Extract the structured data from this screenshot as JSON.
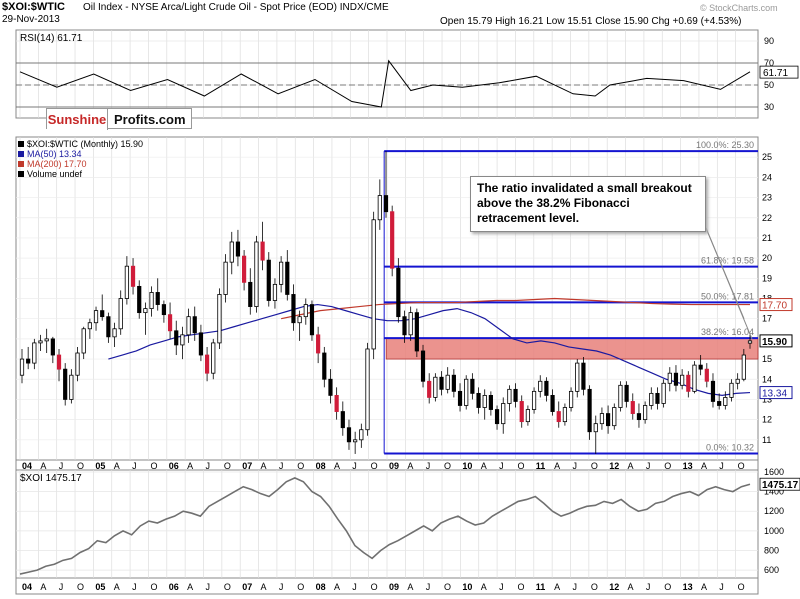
{
  "header": {
    "symbol": "$XOI:$WTIC",
    "description": "Oil Index - NYSE Arca/Light Crude Oil - Spot Price (EOD)  INDX/CME",
    "date": "29-Nov-2013",
    "open_label": "Open",
    "open": "15.79",
    "high_label": "High",
    "high": "16.21",
    "low_label": "Low",
    "low": "15.51",
    "close_label": "Close",
    "close": "15.90",
    "chg_label": "Chg",
    "chg": "+0.69 (+4.53%)",
    "watermark": "© StockCharts.com"
  },
  "logo": {
    "part1": "Sunshine",
    "part2": "Profits.com"
  },
  "annotation": "The ratio invalidated a small breakout above the 38.2% Fibonacci retracement level.",
  "chart_data": [
    {
      "type": "line",
      "panel": "rsi",
      "legend": "RSI(14) 61.71",
      "last_value": "61.71",
      "ylim": [
        20,
        100
      ],
      "y_ticks": [
        90,
        70,
        50,
        30
      ],
      "reference_lines": [
        70,
        50,
        30
      ],
      "x": [
        2004.0,
        2004.5,
        2005.0,
        2005.5,
        2006.0,
        2006.5,
        2007.0,
        2007.5,
        2008.0,
        2008.5,
        2008.9,
        2009.0,
        2009.3,
        2009.6,
        2010.0,
        2010.5,
        2011.0,
        2011.5,
        2011.8,
        2012.0,
        2012.5,
        2013.0,
        2013.5,
        2013.9
      ],
      "values": [
        62,
        48,
        60,
        45,
        55,
        40,
        60,
        42,
        55,
        35,
        30,
        72,
        45,
        50,
        48,
        52,
        58,
        42,
        40,
        50,
        56,
        54,
        46,
        62
      ],
      "color": "#000000"
    },
    {
      "type": "candlestick",
      "panel": "price",
      "legend": [
        {
          "text": "$XOI:$WTIC (Monthly) 15.90",
          "color": "#000000"
        },
        {
          "text": "MA(50) 13.34",
          "color": "#1a1aa0"
        },
        {
          "text": "MA(200) 17.70",
          "color": "#c0392b"
        },
        {
          "text": "Volume undef",
          "color": "#000000"
        }
      ],
      "ylim": [
        10,
        26
      ],
      "y_ticks": [
        11,
        12,
        13,
        14,
        15,
        16,
        17,
        18,
        19,
        20,
        21,
        22,
        23,
        24,
        25
      ],
      "x_ticks": [
        "04",
        "A",
        "J",
        "O",
        "05",
        "A",
        "J",
        "O",
        "06",
        "A",
        "J",
        "O",
        "07",
        "A",
        "J",
        "O",
        "08",
        "A",
        "J",
        "O",
        "09",
        "A",
        "J",
        "O",
        "10",
        "A",
        "J",
        "O",
        "11",
        "A",
        "J",
        "O",
        "12",
        "A",
        "J",
        "O",
        "13",
        "A",
        "J",
        "O"
      ],
      "candles": [
        {
          "o": 14.2,
          "h": 15.5,
          "l": 13.8,
          "c": 15.0
        },
        {
          "o": 15.0,
          "h": 15.6,
          "l": 14.5,
          "c": 14.8
        },
        {
          "o": 14.8,
          "h": 16.0,
          "l": 14.5,
          "c": 15.8
        },
        {
          "o": 15.8,
          "h": 16.2,
          "l": 15.4,
          "c": 15.9
        },
        {
          "o": 15.9,
          "h": 16.5,
          "l": 15.3,
          "c": 16.0
        },
        {
          "o": 16.0,
          "h": 16.1,
          "l": 14.8,
          "c": 15.2
        },
        {
          "o": 15.2,
          "h": 15.5,
          "l": 13.9,
          "c": 14.5
        },
        {
          "o": 14.5,
          "h": 14.8,
          "l": 12.7,
          "c": 13.0
        },
        {
          "o": 13.0,
          "h": 14.5,
          "l": 12.8,
          "c": 14.2
        },
        {
          "o": 14.2,
          "h": 15.6,
          "l": 13.9,
          "c": 15.3
        },
        {
          "o": 15.3,
          "h": 16.6,
          "l": 15.0,
          "c": 16.5
        },
        {
          "o": 16.5,
          "h": 17.0,
          "l": 16.0,
          "c": 16.8
        },
        {
          "o": 16.8,
          "h": 17.6,
          "l": 16.4,
          "c": 17.4
        },
        {
          "o": 17.4,
          "h": 18.2,
          "l": 16.9,
          "c": 17.1
        },
        {
          "o": 17.1,
          "h": 17.3,
          "l": 15.8,
          "c": 16.1
        },
        {
          "o": 16.1,
          "h": 16.8,
          "l": 15.6,
          "c": 16.5
        },
        {
          "o": 16.5,
          "h": 18.4,
          "l": 16.2,
          "c": 18.0
        },
        {
          "o": 18.0,
          "h": 20.1,
          "l": 17.7,
          "c": 19.6
        },
        {
          "o": 19.6,
          "h": 20.0,
          "l": 18.2,
          "c": 18.6
        },
        {
          "o": 18.6,
          "h": 18.9,
          "l": 17.0,
          "c": 17.3
        },
        {
          "o": 17.3,
          "h": 17.8,
          "l": 16.2,
          "c": 17.5
        },
        {
          "o": 17.5,
          "h": 18.6,
          "l": 17.1,
          "c": 18.3
        },
        {
          "o": 18.3,
          "h": 19.0,
          "l": 17.4,
          "c": 17.7
        },
        {
          "o": 17.7,
          "h": 17.9,
          "l": 16.8,
          "c": 17.2
        },
        {
          "o": 17.2,
          "h": 17.8,
          "l": 16.0,
          "c": 16.4
        },
        {
          "o": 16.4,
          "h": 16.9,
          "l": 15.2,
          "c": 15.7
        },
        {
          "o": 15.7,
          "h": 16.6,
          "l": 15.0,
          "c": 16.2
        },
        {
          "o": 16.2,
          "h": 17.5,
          "l": 15.8,
          "c": 17.1
        },
        {
          "o": 17.1,
          "h": 17.6,
          "l": 15.9,
          "c": 16.3
        },
        {
          "o": 16.3,
          "h": 16.7,
          "l": 14.9,
          "c": 15.2
        },
        {
          "o": 15.2,
          "h": 15.6,
          "l": 13.9,
          "c": 14.3
        },
        {
          "o": 14.3,
          "h": 16.0,
          "l": 14.0,
          "c": 15.8
        },
        {
          "o": 15.8,
          "h": 18.5,
          "l": 15.5,
          "c": 18.2
        },
        {
          "o": 18.2,
          "h": 20.2,
          "l": 17.8,
          "c": 19.8
        },
        {
          "o": 19.8,
          "h": 21.3,
          "l": 19.2,
          "c": 20.8
        },
        {
          "o": 20.8,
          "h": 21.4,
          "l": 19.6,
          "c": 20.1
        },
        {
          "o": 20.1,
          "h": 20.4,
          "l": 18.4,
          "c": 18.8
        },
        {
          "o": 18.8,
          "h": 19.5,
          "l": 17.2,
          "c": 17.6
        },
        {
          "o": 17.6,
          "h": 21.1,
          "l": 17.3,
          "c": 20.8
        },
        {
          "o": 20.8,
          "h": 21.8,
          "l": 19.4,
          "c": 19.9
        },
        {
          "o": 19.9,
          "h": 20.3,
          "l": 17.6,
          "c": 17.9
        },
        {
          "o": 17.9,
          "h": 19.0,
          "l": 17.5,
          "c": 18.7
        },
        {
          "o": 18.7,
          "h": 20.1,
          "l": 18.3,
          "c": 19.8
        },
        {
          "o": 19.8,
          "h": 20.4,
          "l": 17.9,
          "c": 18.2
        },
        {
          "o": 18.2,
          "h": 18.7,
          "l": 16.4,
          "c": 16.8
        },
        {
          "o": 16.8,
          "h": 17.4,
          "l": 15.9,
          "c": 17.1
        },
        {
          "o": 17.1,
          "h": 18.0,
          "l": 16.7,
          "c": 17.7
        },
        {
          "o": 17.7,
          "h": 17.9,
          "l": 15.9,
          "c": 16.2
        },
        {
          "o": 16.2,
          "h": 16.6,
          "l": 14.8,
          "c": 15.3
        },
        {
          "o": 15.3,
          "h": 15.6,
          "l": 13.6,
          "c": 14.0
        },
        {
          "o": 14.0,
          "h": 14.5,
          "l": 12.8,
          "c": 13.2
        },
        {
          "o": 13.2,
          "h": 13.6,
          "l": 12.0,
          "c": 12.4
        },
        {
          "o": 12.4,
          "h": 12.9,
          "l": 11.2,
          "c": 11.6
        },
        {
          "o": 11.6,
          "h": 12.0,
          "l": 10.5,
          "c": 10.9
        },
        {
          "o": 10.9,
          "h": 11.4,
          "l": 10.3,
          "c": 11.0
        },
        {
          "o": 11.0,
          "h": 11.8,
          "l": 10.6,
          "c": 11.5
        },
        {
          "o": 11.5,
          "h": 15.8,
          "l": 11.2,
          "c": 15.5
        },
        {
          "o": 15.5,
          "h": 22.3,
          "l": 15.0,
          "c": 21.9
        },
        {
          "o": 21.9,
          "h": 23.9,
          "l": 21.4,
          "c": 23.1
        },
        {
          "o": 23.1,
          "h": 25.3,
          "l": 22.0,
          "c": 22.3
        },
        {
          "o": 22.3,
          "h": 22.6,
          "l": 19.1,
          "c": 19.5
        },
        {
          "o": 19.5,
          "h": 20.0,
          "l": 16.8,
          "c": 17.1
        },
        {
          "o": 17.1,
          "h": 17.4,
          "l": 15.8,
          "c": 16.2
        },
        {
          "o": 16.2,
          "h": 17.6,
          "l": 15.9,
          "c": 17.3
        },
        {
          "o": 17.3,
          "h": 17.5,
          "l": 15.1,
          "c": 15.4
        },
        {
          "o": 15.4,
          "h": 15.7,
          "l": 13.6,
          "c": 13.9
        },
        {
          "o": 13.9,
          "h": 14.3,
          "l": 12.8,
          "c": 13.1
        },
        {
          "o": 13.1,
          "h": 14.3,
          "l": 12.9,
          "c": 14.1
        },
        {
          "o": 14.1,
          "h": 14.4,
          "l": 13.2,
          "c": 13.5
        },
        {
          "o": 13.5,
          "h": 14.6,
          "l": 13.3,
          "c": 14.2
        },
        {
          "o": 14.2,
          "h": 14.5,
          "l": 13.1,
          "c": 13.4
        },
        {
          "o": 13.4,
          "h": 13.8,
          "l": 12.4,
          "c": 12.7
        },
        {
          "o": 12.7,
          "h": 14.2,
          "l": 12.5,
          "c": 14.0
        },
        {
          "o": 14.0,
          "h": 14.3,
          "l": 13.0,
          "c": 13.3
        },
        {
          "o": 13.3,
          "h": 13.6,
          "l": 12.3,
          "c": 12.6
        },
        {
          "o": 12.6,
          "h": 13.5,
          "l": 12.0,
          "c": 13.2
        },
        {
          "o": 13.2,
          "h": 13.4,
          "l": 12.2,
          "c": 12.5
        },
        {
          "o": 12.5,
          "h": 12.7,
          "l": 11.5,
          "c": 11.8
        },
        {
          "o": 11.8,
          "h": 13.1,
          "l": 11.3,
          "c": 12.8
        },
        {
          "o": 12.8,
          "h": 13.7,
          "l": 12.4,
          "c": 13.5
        },
        {
          "o": 13.5,
          "h": 13.8,
          "l": 12.6,
          "c": 12.9
        },
        {
          "o": 12.9,
          "h": 13.2,
          "l": 11.6,
          "c": 11.9
        },
        {
          "o": 11.9,
          "h": 12.7,
          "l": 11.7,
          "c": 12.5
        },
        {
          "o": 12.5,
          "h": 13.6,
          "l": 12.3,
          "c": 13.4
        },
        {
          "o": 13.4,
          "h": 14.2,
          "l": 13.1,
          "c": 13.9
        },
        {
          "o": 13.9,
          "h": 14.1,
          "l": 12.9,
          "c": 13.2
        },
        {
          "o": 13.2,
          "h": 13.5,
          "l": 12.2,
          "c": 12.4
        },
        {
          "o": 12.4,
          "h": 12.9,
          "l": 11.6,
          "c": 11.9
        },
        {
          "o": 11.9,
          "h": 12.8,
          "l": 11.7,
          "c": 12.6
        },
        {
          "o": 12.6,
          "h": 13.6,
          "l": 12.4,
          "c": 13.4
        },
        {
          "o": 13.4,
          "h": 15.0,
          "l": 13.1,
          "c": 14.8
        },
        {
          "o": 14.8,
          "h": 15.1,
          "l": 13.2,
          "c": 13.5
        },
        {
          "o": 13.5,
          "h": 13.7,
          "l": 11.0,
          "c": 11.4
        },
        {
          "o": 11.4,
          "h": 12.2,
          "l": 10.3,
          "c": 11.8
        },
        {
          "o": 11.8,
          "h": 12.6,
          "l": 11.5,
          "c": 12.3
        },
        {
          "o": 12.3,
          "h": 12.7,
          "l": 11.3,
          "c": 11.7
        },
        {
          "o": 11.7,
          "h": 12.8,
          "l": 11.5,
          "c": 12.6
        },
        {
          "o": 12.6,
          "h": 13.9,
          "l": 12.4,
          "c": 13.7
        },
        {
          "o": 13.7,
          "h": 13.9,
          "l": 12.6,
          "c": 12.9
        },
        {
          "o": 12.9,
          "h": 13.3,
          "l": 12.0,
          "c": 12.3
        },
        {
          "o": 12.3,
          "h": 12.8,
          "l": 11.6,
          "c": 12.0
        },
        {
          "o": 12.0,
          "h": 12.9,
          "l": 11.8,
          "c": 12.7
        },
        {
          "o": 12.7,
          "h": 13.6,
          "l": 12.5,
          "c": 13.3
        },
        {
          "o": 13.3,
          "h": 13.6,
          "l": 12.5,
          "c": 12.8
        },
        {
          "o": 12.8,
          "h": 14.0,
          "l": 12.6,
          "c": 13.8
        },
        {
          "o": 13.8,
          "h": 14.6,
          "l": 13.4,
          "c": 14.3
        },
        {
          "o": 14.3,
          "h": 14.7,
          "l": 13.4,
          "c": 13.7
        },
        {
          "o": 13.7,
          "h": 14.5,
          "l": 13.5,
          "c": 14.2
        },
        {
          "o": 14.2,
          "h": 14.4,
          "l": 13.1,
          "c": 13.4
        },
        {
          "o": 13.4,
          "h": 14.9,
          "l": 13.3,
          "c": 14.7
        },
        {
          "o": 14.7,
          "h": 15.2,
          "l": 14.2,
          "c": 14.5
        },
        {
          "o": 14.5,
          "h": 14.8,
          "l": 13.6,
          "c": 13.9
        },
        {
          "o": 13.9,
          "h": 14.3,
          "l": 12.6,
          "c": 12.9
        },
        {
          "o": 12.9,
          "h": 13.3,
          "l": 12.5,
          "c": 12.7
        },
        {
          "o": 12.7,
          "h": 13.4,
          "l": 12.5,
          "c": 13.1
        },
        {
          "o": 13.1,
          "h": 14.0,
          "l": 12.9,
          "c": 13.8
        },
        {
          "o": 13.8,
          "h": 14.3,
          "l": 13.5,
          "c": 14.0
        },
        {
          "o": 14.0,
          "h": 15.5,
          "l": 13.9,
          "c": 15.2
        },
        {
          "o": 15.79,
          "h": 16.21,
          "l": 15.51,
          "c": 15.9
        }
      ],
      "ma50": [
        15.0,
        15.2,
        15.4,
        15.7,
        15.9,
        16.1,
        16.2,
        16.3,
        16.4,
        16.6,
        16.8,
        17.0,
        17.2,
        17.4,
        17.6,
        17.7,
        17.6,
        17.4,
        17.2,
        17.0,
        16.9,
        16.9,
        17.0,
        17.2,
        17.4,
        17.5,
        17.3,
        17.0,
        16.5,
        16.0,
        15.8,
        15.9,
        15.8,
        15.6,
        15.5,
        15.4,
        15.2,
        14.9,
        14.6,
        14.3,
        14.0,
        13.8,
        13.5,
        13.3,
        13.2,
        13.3,
        13.34
      ],
      "ma200": [
        17.0,
        17.2,
        17.4,
        17.5,
        17.6,
        17.7,
        17.75,
        17.8,
        17.8,
        17.8,
        17.85,
        17.9,
        17.9,
        17.95,
        18.0,
        17.95,
        17.9,
        17.85,
        17.8,
        17.75,
        17.72,
        17.7,
        17.7,
        17.7,
        17.7
      ],
      "fib_levels": [
        {
          "label": "100.0%: 25.30",
          "value": 25.3
        },
        {
          "label": "61.8%: 19.58",
          "value": 19.58
        },
        {
          "label": "50.0%: 17.81",
          "value": 17.81
        },
        {
          "label": "38.2%: 16.04",
          "value": 16.04
        },
        {
          "label": "0.0%: 10.32",
          "value": 10.32
        }
      ],
      "last_labels": [
        {
          "text": "17.70",
          "value": 17.7,
          "color": "#c0392b"
        },
        {
          "text": "15.90",
          "value": 15.9,
          "color": "#000000"
        },
        {
          "text": "13.34",
          "value": 13.34,
          "color": "#1a1aa0"
        }
      ],
      "zone": {
        "from": 15.0,
        "to": 16.04
      }
    },
    {
      "type": "line",
      "panel": "xoi",
      "legend": "$XOI 1475.17",
      "last_value": "1475.17",
      "ylim": [
        520,
        1620
      ],
      "y_ticks": [
        1600,
        1400,
        1200,
        1000,
        800,
        600
      ],
      "x_ticks": [
        "04",
        "A",
        "J",
        "O",
        "05",
        "A",
        "J",
        "O",
        "06",
        "A",
        "J",
        "O",
        "07",
        "A",
        "J",
        "O",
        "08",
        "A",
        "J",
        "O",
        "09",
        "A",
        "J",
        "O",
        "10",
        "A",
        "J",
        "O",
        "11",
        "A",
        "J",
        "O",
        "12",
        "A",
        "J",
        "O",
        "13",
        "A",
        "J",
        "O"
      ],
      "values": [
        560,
        580,
        600,
        640,
        660,
        700,
        720,
        780,
        820,
        900,
        880,
        950,
        1000,
        960,
        1050,
        1100,
        1080,
        1120,
        1150,
        1200,
        1180,
        1150,
        1250,
        1300,
        1350,
        1400,
        1450,
        1420,
        1380,
        1350,
        1420,
        1500,
        1540,
        1500,
        1400,
        1350,
        1250,
        1120,
        1000,
        850,
        780,
        720,
        800,
        860,
        900,
        950,
        1000,
        1050,
        1000,
        1080,
        1120,
        1150,
        1100,
        1060,
        1080,
        1150,
        1200,
        1250,
        1300,
        1320,
        1350,
        1280,
        1200,
        1150,
        1180,
        1220,
        1250,
        1260,
        1300,
        1280,
        1320,
        1250,
        1200,
        1220,
        1280,
        1300,
        1350,
        1380,
        1400,
        1360,
        1420,
        1450,
        1420,
        1400,
        1450,
        1475.17
      ],
      "color": "#707070"
    }
  ]
}
